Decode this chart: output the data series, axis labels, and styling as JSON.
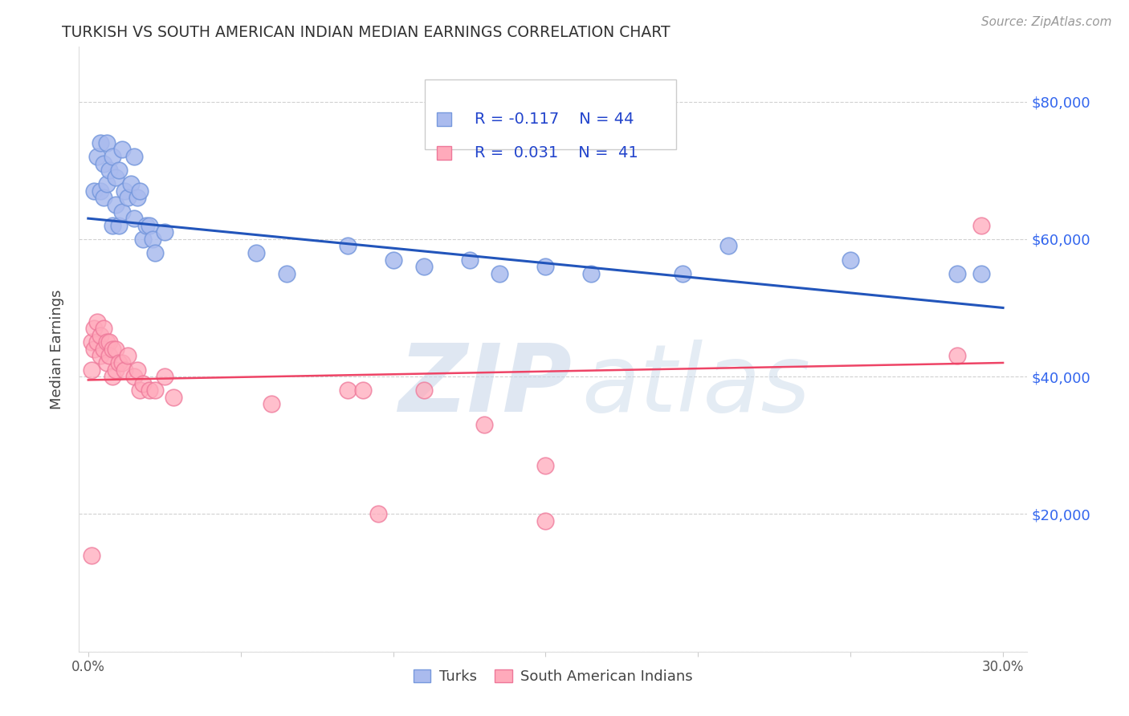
{
  "title": "TURKISH VS SOUTH AMERICAN INDIAN MEDIAN EARNINGS CORRELATION CHART",
  "source": "Source: ZipAtlas.com",
  "ylabel": "Median Earnings",
  "y_ticks": [
    0,
    20000,
    40000,
    60000,
    80000
  ],
  "y_ticklabels_right": [
    "",
    "$20,000",
    "$40,000",
    "$60,000",
    "$80,000"
  ],
  "x_ticks": [
    0.0,
    0.05,
    0.1,
    0.15,
    0.2,
    0.25,
    0.3
  ],
  "x_ticklabels": [
    "0.0%",
    "",
    "",
    "",
    "",
    "",
    "30.0%"
  ],
  "y_min": 0,
  "y_max": 88000,
  "x_min": -0.003,
  "x_max": 0.308,
  "blue_color": "#aabbee",
  "blue_edge": "#7799dd",
  "pink_color": "#ffaabb",
  "pink_edge": "#ee7799",
  "blue_line_color": "#2255bb",
  "pink_line_color": "#ee4466",
  "legend_blue_r": "R = -0.117",
  "legend_blue_n": "N = 44",
  "legend_pink_r": "R =  0.031",
  "legend_pink_n": "N =  41",
  "blue_trendline": [
    0.0,
    0.3,
    63000,
    50000
  ],
  "pink_trendline": [
    0.0,
    0.3,
    39500,
    42000
  ],
  "blue_scatter_x": [
    0.002,
    0.003,
    0.004,
    0.004,
    0.005,
    0.005,
    0.006,
    0.006,
    0.007,
    0.008,
    0.008,
    0.009,
    0.009,
    0.01,
    0.01,
    0.011,
    0.011,
    0.012,
    0.013,
    0.014,
    0.015,
    0.015,
    0.016,
    0.017,
    0.018,
    0.019,
    0.02,
    0.021,
    0.022,
    0.025,
    0.055,
    0.065,
    0.085,
    0.1,
    0.11,
    0.125,
    0.135,
    0.15,
    0.165,
    0.195,
    0.21,
    0.25,
    0.285,
    0.293
  ],
  "blue_scatter_y": [
    67000,
    72000,
    74000,
    67000,
    71000,
    66000,
    74000,
    68000,
    70000,
    72000,
    62000,
    69000,
    65000,
    70000,
    62000,
    73000,
    64000,
    67000,
    66000,
    68000,
    72000,
    63000,
    66000,
    67000,
    60000,
    62000,
    62000,
    60000,
    58000,
    61000,
    58000,
    55000,
    59000,
    57000,
    56000,
    57000,
    55000,
    56000,
    55000,
    55000,
    59000,
    57000,
    55000,
    55000
  ],
  "pink_scatter_x": [
    0.001,
    0.001,
    0.002,
    0.002,
    0.003,
    0.003,
    0.004,
    0.004,
    0.005,
    0.005,
    0.006,
    0.006,
    0.007,
    0.007,
    0.008,
    0.008,
    0.009,
    0.009,
    0.01,
    0.011,
    0.012,
    0.013,
    0.015,
    0.016,
    0.017,
    0.018,
    0.02,
    0.022,
    0.025,
    0.028,
    0.06,
    0.085,
    0.09,
    0.11,
    0.13,
    0.15,
    0.001,
    0.095,
    0.15,
    0.285,
    0.293
  ],
  "pink_scatter_y": [
    45000,
    41000,
    47000,
    44000,
    48000,
    45000,
    46000,
    43000,
    47000,
    44000,
    45000,
    42000,
    45000,
    43000,
    44000,
    40000,
    44000,
    41000,
    42000,
    42000,
    41000,
    43000,
    40000,
    41000,
    38000,
    39000,
    38000,
    38000,
    40000,
    37000,
    36000,
    38000,
    38000,
    38000,
    33000,
    27000,
    14000,
    20000,
    19000,
    43000,
    62000
  ],
  "background_color": "#ffffff",
  "grid_color": "#cccccc",
  "watermark_color": "#c5d5e8"
}
